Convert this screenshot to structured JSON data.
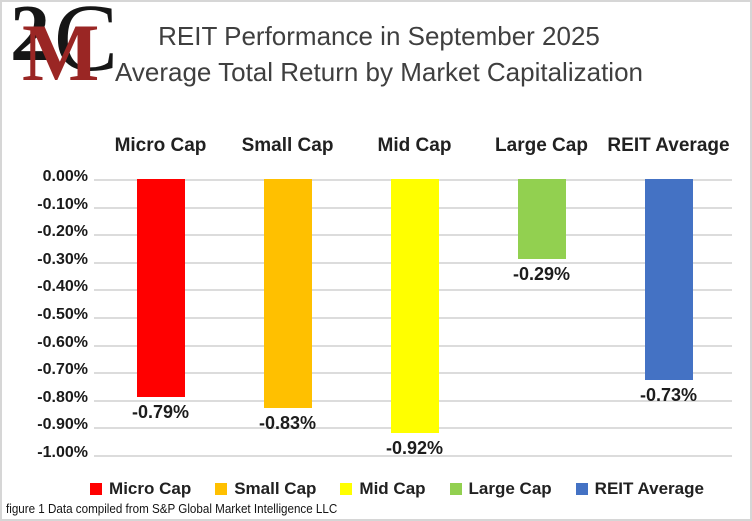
{
  "logo": {
    "char_2": "2",
    "char_m": "M",
    "char_c": "C",
    "red": "#9a2624",
    "black": "#161616"
  },
  "title": {
    "line1": "REIT Performance in September 2025",
    "line2": "Average Total Return by Market Capitalization"
  },
  "chart_data": {
    "type": "bar",
    "title": "REIT Performance in September 2025",
    "subtitle": "Average Total Return by Market Capitalization",
    "categories": [
      "Micro Cap",
      "Small Cap",
      "Mid Cap",
      "Large Cap",
      "REIT Average"
    ],
    "values": [
      -0.79,
      -0.83,
      -0.92,
      -0.29,
      -0.73
    ],
    "value_labels": [
      "-0.79%",
      "-0.83%",
      "-0.92%",
      "-0.29%",
      "-0.73%"
    ],
    "bar_colors": [
      "#ff0000",
      "#ffc000",
      "#ffff00",
      "#92d050",
      "#4472c4"
    ],
    "unit": "%",
    "ylim": [
      -1.0,
      0.0
    ],
    "ytick_step": 0.1,
    "ytick_labels": [
      "0.00%",
      "-0.10%",
      "-0.20%",
      "-0.30%",
      "-0.40%",
      "-0.50%",
      "-0.60%",
      "-0.70%",
      "-0.80%",
      "-0.90%",
      "-1.00%"
    ],
    "grid": true,
    "gridline_color": "#dcdcdc",
    "legend_position": "bottom"
  },
  "legend": {
    "items": [
      {
        "label": "Micro Cap",
        "color": "#ff0000"
      },
      {
        "label": "Small Cap",
        "color": "#ffc000"
      },
      {
        "label": "Mid Cap",
        "color": "#ffff00"
      },
      {
        "label": "Large Cap",
        "color": "#92d050"
      },
      {
        "label": "REIT Average",
        "color": "#4472c4"
      }
    ]
  },
  "caption": "figure 1 Data compiled from S&P Global Market Intelligence LLC"
}
